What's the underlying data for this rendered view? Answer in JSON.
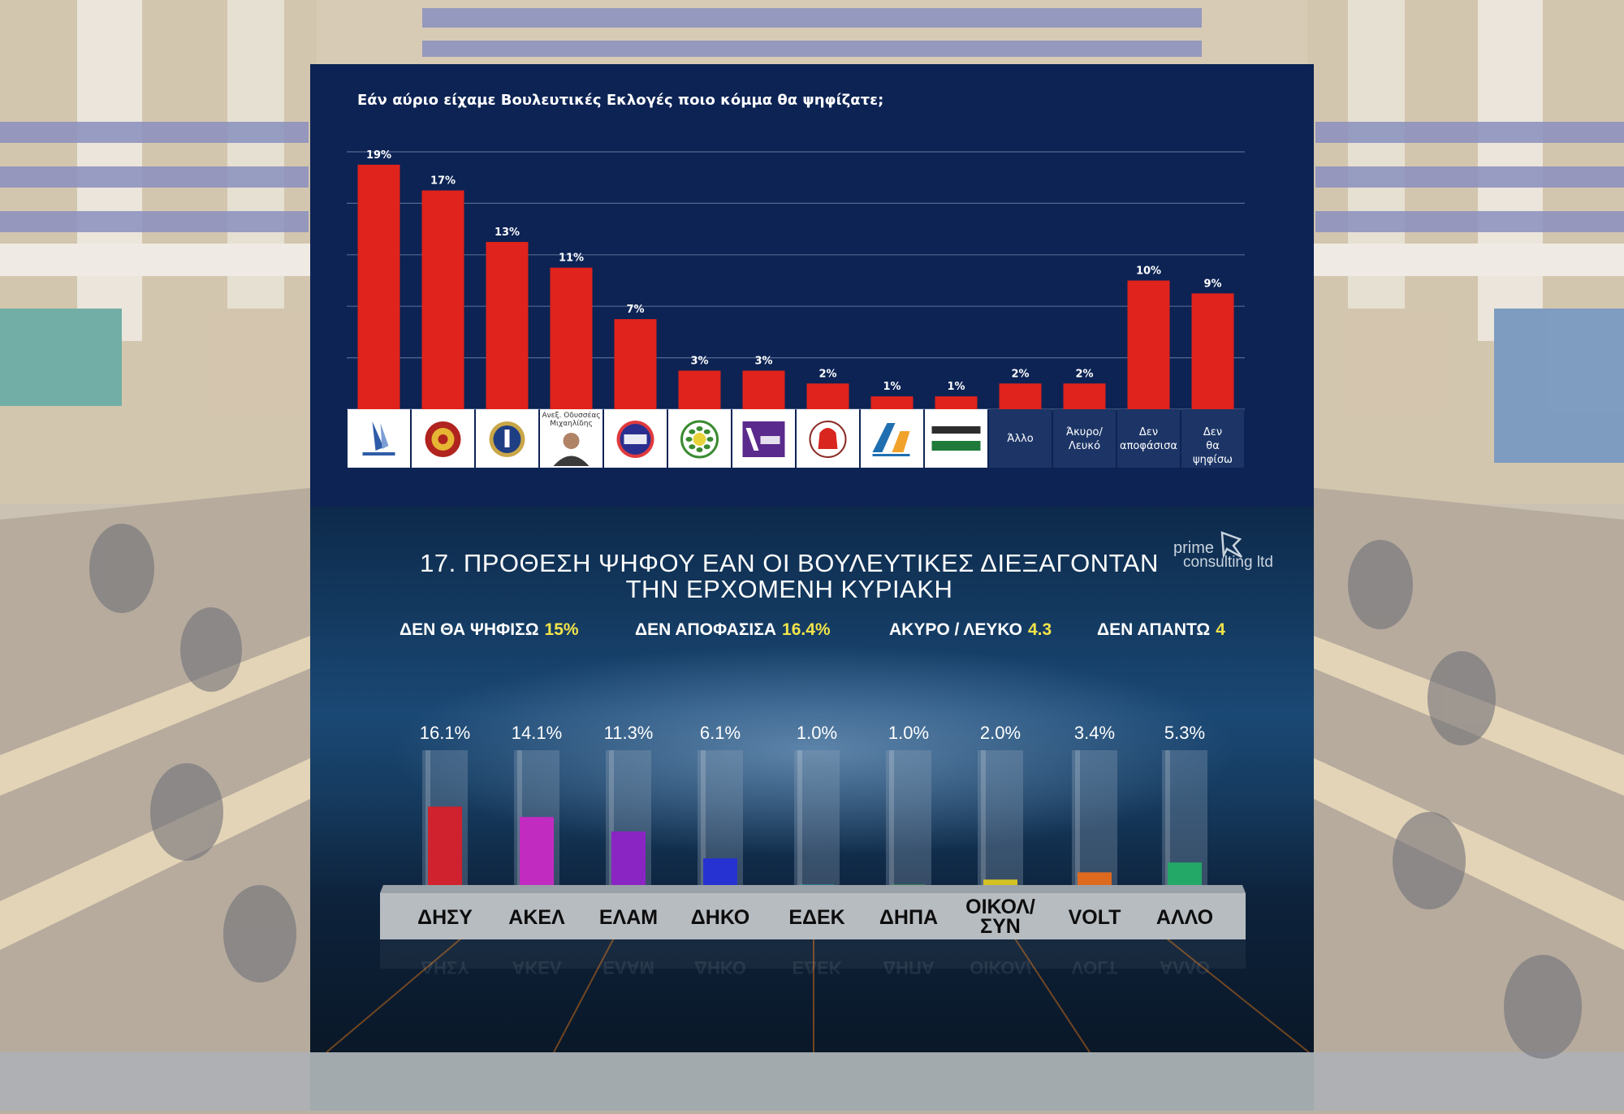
{
  "colors": {
    "top_background": "#0c2354",
    "top_bar": "#e0231c",
    "top_label_text": "#ffffff",
    "stat_value": "#f2e34a"
  },
  "chart_data": [
    {
      "type": "bar",
      "title": "Εάν αύριο είχαμε Βουλευτικές Εκλογές ποιο κόμμα θα ψηφίζατε;",
      "grid": true,
      "ylim": [
        0,
        20
      ],
      "categories": [
        {
          "label": "",
          "logo": "disy-logo"
        },
        {
          "label": "",
          "logo": "akel-logo"
        },
        {
          "label": "",
          "logo": "elam-logo"
        },
        {
          "label": "Ανεξ. Οδυσσέας Μιχαηλίδης",
          "logo": "michaelides-portrait"
        },
        {
          "label": "",
          "logo": "diko-logo"
        },
        {
          "label": "",
          "logo": "ecologists-logo"
        },
        {
          "label": "",
          "logo": "volt-logo"
        },
        {
          "label": "",
          "logo": "edek-logo"
        },
        {
          "label": "",
          "logo": "dipa-logo"
        },
        {
          "label": "",
          "logo": "active-citizens-logo"
        },
        {
          "label": "Άλλο",
          "logo": ""
        },
        {
          "label": "Άκυρο/ Λευκό",
          "logo": ""
        },
        {
          "label": "Δεν αποφάσισα",
          "logo": ""
        },
        {
          "label": "Δεν θα ψηφίσω",
          "logo": ""
        }
      ],
      "values": [
        19,
        17,
        13,
        11,
        7,
        3,
        3,
        2,
        1,
        1,
        2,
        2,
        10,
        9
      ],
      "value_labels": [
        "19%",
        "17%",
        "13%",
        "11%",
        "7%",
        "3%",
        "3%",
        "2%",
        "1%",
        "1%",
        "2%",
        "2%",
        "10%",
        "9%"
      ]
    },
    {
      "type": "bar",
      "title_line1": "17. ΠΡΟΘΕΣΗ ΨΗΦΟΥ ΕΑΝ ΟΙ ΒΟΥΛΕΥΤΙΚΕΣ ΔΙΕΞΑΓΟΝΤΑΝ",
      "title_line2": "ΤΗΝ ΕΡΧΟΜΕΝΗ ΚΥΡΙΑΚΗ",
      "brand_line1": "prime",
      "brand_line2": "consulting ltd",
      "stats": [
        {
          "label": "ΔΕΝ ΘΑ ΨΗΦΙΣΩ",
          "value": "15%"
        },
        {
          "label": "ΔΕΝ ΑΠΟΦΑΣΙΣΑ",
          "value": "16.4%"
        },
        {
          "label": "ΑΚΥΡΟ / ΛΕΥΚΟ",
          "value": "4.3"
        },
        {
          "label": "ΔΕΝ ΑΠΑΝΤΩ",
          "value": "4"
        }
      ],
      "ylim": [
        0,
        27
      ],
      "categories": [
        "ΔΗΣΥ",
        "ΑΚΕΛ",
        "ΕΛΑΜ",
        "ΔΗΚΟ",
        "ΕΔΕΚ",
        "ΔΗΠΑ",
        "ΟΙΚΟΛ/ ΣΥΝ",
        "VOLT",
        "ΑΛΛΟ"
      ],
      "values": [
        16.1,
        14.1,
        11.3,
        6.1,
        1.0,
        1.0,
        2.0,
        3.4,
        5.3
      ],
      "value_labels": [
        "16.1%",
        "14.1%",
        "11.3%",
        "6.1%",
        "1.0%",
        "1.0%",
        "2.0%",
        "3.4%",
        "5.3%"
      ],
      "colors": [
        "#d0212e",
        "#c22bc0",
        "#8a25c4",
        "#2732d2",
        "#19c6c9",
        "#35c63b",
        "#d4c225",
        "#dd6a1f",
        "#23a868"
      ]
    }
  ]
}
